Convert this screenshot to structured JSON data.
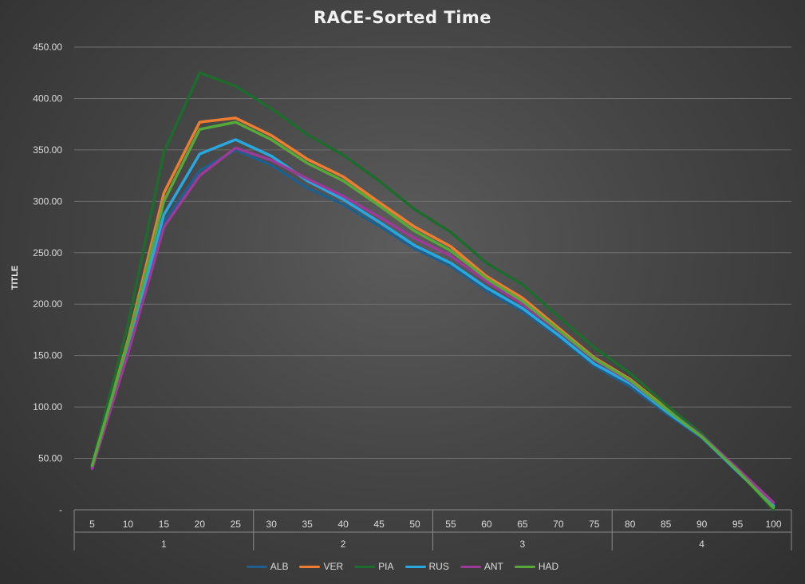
{
  "chart_data": {
    "type": "line",
    "title": "RACE-Sorted Time",
    "xlabel": "",
    "ylabel": "TITLE",
    "ylim": [
      0,
      450
    ],
    "yticks": [
      "-",
      "50.00",
      "100.00",
      "150.00",
      "200.00",
      "250.00",
      "300.00",
      "350.00",
      "400.00",
      "450.00"
    ],
    "x": [
      "5",
      "10",
      "15",
      "20",
      "25",
      "30",
      "35",
      "40",
      "45",
      "50",
      "55",
      "60",
      "65",
      "70",
      "75",
      "80",
      "85",
      "90",
      "95",
      "100"
    ],
    "groups": [
      {
        "label": "1",
        "start": 0,
        "end": 4
      },
      {
        "label": "2",
        "start": 5,
        "end": 9
      },
      {
        "label": "3",
        "start": 10,
        "end": 14
      },
      {
        "label": "4",
        "start": 15,
        "end": 19
      }
    ],
    "grid": true,
    "legend_position": "bottom",
    "series": [
      {
        "name": "ALB",
        "color": "#1f5f8b",
        "values": [
          40,
          160,
          280,
          330,
          350,
          335,
          313,
          297,
          276,
          254,
          237,
          213,
          193,
          168,
          140,
          120,
          94,
          70,
          37,
          3
        ]
      },
      {
        "name": "VER",
        "color": "#ef7d31",
        "values": [
          42,
          165,
          308,
          377,
          381,
          364,
          341,
          324,
          299,
          275,
          256,
          227,
          206,
          177,
          148,
          127,
          99,
          72,
          38,
          3
        ]
      },
      {
        "name": "PIA",
        "color": "#1e6b2e",
        "values": [
          44,
          180,
          348,
          425,
          412,
          390,
          365,
          345,
          320,
          292,
          270,
          240,
          219,
          188,
          158,
          133,
          102,
          74,
          38,
          0
        ]
      },
      {
        "name": "RUS",
        "color": "#29a8df",
        "values": [
          41,
          158,
          287,
          346,
          360,
          344,
          320,
          302,
          280,
          257,
          240,
          216,
          196,
          170,
          142,
          123,
          96,
          71,
          37,
          4
        ]
      },
      {
        "name": "ANT",
        "color": "#9b3a97",
        "values": [
          40,
          152,
          275,
          325,
          352,
          340,
          322,
          305,
          285,
          264,
          247,
          222,
          200,
          174,
          146,
          125,
          98,
          72,
          40,
          7
        ]
      },
      {
        "name": "HAD",
        "color": "#57a83b",
        "values": [
          43,
          163,
          300,
          370,
          377,
          360,
          337,
          320,
          296,
          271,
          252,
          225,
          203,
          175,
          147,
          126,
          98,
          71,
          38,
          2
        ]
      }
    ]
  }
}
